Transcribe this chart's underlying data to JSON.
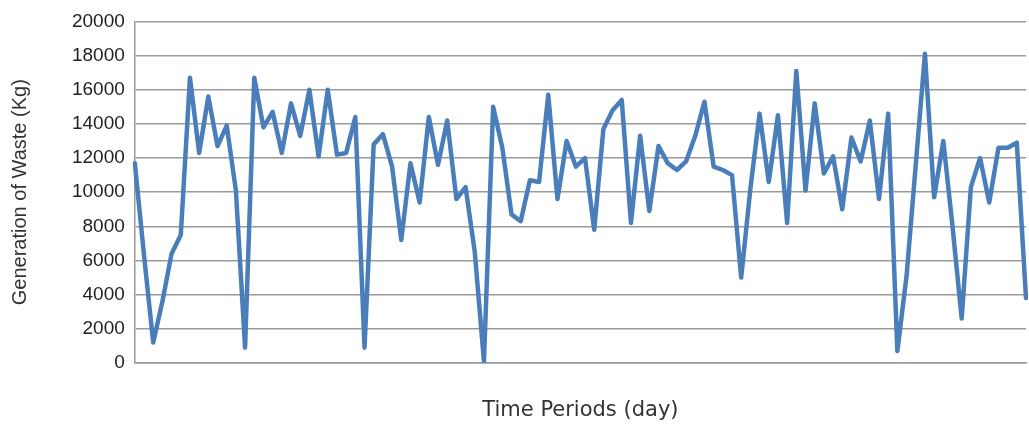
{
  "chart_data": {
    "type": "line",
    "xlabel": "Time Periods (day)",
    "ylabel": "Generation of Waste (Kg)",
    "categories": [
      null,
      null,
      null,
      null,
      null,
      null,
      null,
      null,
      null,
      null,
      null,
      null,
      null,
      null,
      null,
      null,
      null,
      null,
      null,
      null,
      null,
      null,
      null,
      null,
      null,
      null,
      null,
      null,
      null,
      null,
      null,
      null,
      null,
      null,
      null,
      null,
      null,
      null,
      null,
      null,
      null,
      null,
      null,
      null,
      null,
      null,
      null,
      null,
      null,
      null,
      null,
      null,
      null,
      null,
      null,
      null,
      null,
      null,
      null,
      null,
      null,
      null,
      null,
      null,
      null,
      null,
      null,
      null,
      null,
      null,
      null,
      null,
      null,
      null,
      null,
      null,
      null,
      null,
      null,
      null,
      null,
      null,
      null,
      null,
      null,
      null,
      null,
      null,
      null,
      null,
      null,
      null,
      null,
      null,
      null,
      null,
      null,
      null
    ],
    "series": [
      {
        "color": "#4a7ebb",
        "values": [
          11700,
          6300,
          1200,
          3600,
          6400,
          7500,
          16700,
          12300,
          15600,
          12700,
          13900,
          10100,
          900,
          16700,
          13800,
          14700,
          12300,
          15200,
          13300,
          16000,
          12100,
          16000,
          12200,
          12300,
          14400,
          900,
          12800,
          13400,
          11500,
          7200,
          11700,
          9400,
          14400,
          11600,
          14200,
          9600,
          10300,
          6500,
          100,
          15000,
          12600,
          8700,
          8300,
          10700,
          10600,
          15700,
          9600,
          13000,
          11500,
          12000,
          7800,
          13700,
          14800,
          15400,
          8200,
          13300,
          8900,
          12700,
          11700,
          11300,
          11800,
          13300,
          15300,
          11500,
          11300,
          11000,
          5000,
          10200,
          14600,
          10600,
          14500,
          8200,
          17100,
          10100,
          15200,
          11100,
          12100,
          9000,
          13200,
          11800,
          14200,
          9600,
          14600,
          700,
          5100,
          11600,
          18100,
          9700,
          13000,
          8000,
          2600,
          10300,
          12000,
          9400,
          12600,
          12600,
          12900,
          3800
        ]
      }
    ],
    "ylim": [
      0,
      20000
    ],
    "yticks": [
      0,
      2000,
      4000,
      6000,
      8000,
      10000,
      12000,
      14000,
      16000,
      18000,
      20000
    ],
    "grid": "y",
    "legend": false,
    "marker": "none",
    "line_style": "solid"
  }
}
